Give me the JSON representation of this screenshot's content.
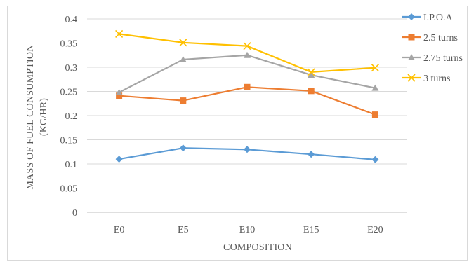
{
  "chart_data": {
    "type": "line",
    "title": "",
    "xlabel": "COMPOSITION",
    "ylabel_lines": [
      "MASS OF FUEL CONSUMPTION",
      "(KG/HR)"
    ],
    "categories": [
      "E0",
      "E5",
      "E10",
      "E15",
      "E20"
    ],
    "ylim": [
      0,
      0.4
    ],
    "yticks": [
      "0",
      "0.05",
      "0.1",
      "0.15",
      "0.2",
      "0.25",
      "0.3",
      "0.35",
      "0.4"
    ],
    "grid": "horizontal",
    "legend_position": "right",
    "series": [
      {
        "name": "I.P.O.A",
        "color": "#5b9bd5",
        "marker": "diamond",
        "values": [
          0.11,
          0.133,
          0.13,
          0.12,
          0.109
        ]
      },
      {
        "name": "2.5 turns",
        "color": "#ed7d31",
        "marker": "square",
        "values": [
          0.241,
          0.231,
          0.259,
          0.251,
          0.202
        ]
      },
      {
        "name": "2.75 turns",
        "color": "#a5a5a5",
        "marker": "triangle",
        "values": [
          0.248,
          0.316,
          0.325,
          0.284,
          0.257
        ]
      },
      {
        "name": "3 turns",
        "color": "#ffc000",
        "marker": "x",
        "values": [
          0.369,
          0.351,
          0.344,
          0.29,
          0.299
        ]
      }
    ]
  }
}
